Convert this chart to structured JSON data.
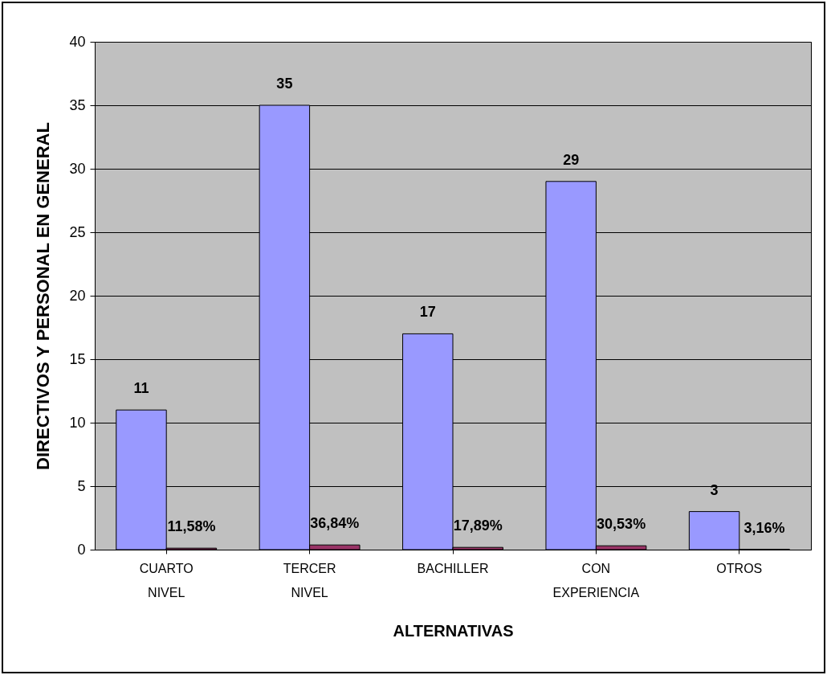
{
  "chart_data": {
    "type": "bar",
    "xlabel": "ALTERNATIVAS",
    "ylabel": "DIRECTIVOS Y PERSONAL EN GENERAL",
    "categories": [
      "CUARTO NIVEL",
      "TERCER NIVEL",
      "BACHILLER",
      "CON EXPERIENCIA",
      "OTROS"
    ],
    "series": [
      {
        "color": "#9999ff",
        "values": [
          11,
          35,
          17,
          29,
          3
        ],
        "value_labels": [
          "11",
          "35",
          "17",
          "29",
          "3"
        ]
      },
      {
        "color": "#993366",
        "values": [
          0.1158,
          0.3684,
          0.1789,
          0.3053,
          0.0316
        ],
        "value_labels": [
          "11,58%",
          "36,84%",
          "17,89%",
          "30,53%",
          "3,16%"
        ]
      }
    ],
    "ylim": [
      0,
      40
    ],
    "yticks": [
      0,
      5,
      10,
      15,
      20,
      25,
      30,
      35,
      40
    ],
    "grid": "y",
    "legend": false
  }
}
